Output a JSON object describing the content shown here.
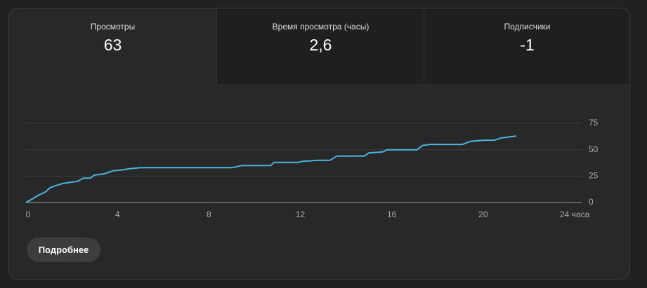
{
  "tabs": [
    {
      "label": "Просмотры",
      "value": "63"
    },
    {
      "label": "Время просмотра (часы)",
      "value": "2,6"
    },
    {
      "label": "Подписчики",
      "value": "-1"
    }
  ],
  "chart_data": {
    "type": "line",
    "x": [
      0,
      0.25,
      0.55,
      0.85,
      1.05,
      1.3,
      1.6,
      1.9,
      2.25,
      2.5,
      2.8,
      3.0,
      3.4,
      3.8,
      4.25,
      4.55,
      5.0,
      9.0,
      9.45,
      10.7,
      10.85,
      11.9,
      12.1,
      12.8,
      13.3,
      13.6,
      14.8,
      15.0,
      15.6,
      15.8,
      17.1,
      17.35,
      17.65,
      19.1,
      19.45,
      20.05,
      20.5,
      20.75,
      21.1,
      21.45
    ],
    "values": [
      0,
      3,
      7,
      10,
      14,
      16,
      18,
      19,
      20,
      23,
      23,
      26,
      27,
      30,
      31,
      32,
      33,
      33,
      35,
      35,
      38,
      38,
      39,
      40,
      40,
      44,
      44,
      47,
      48,
      50,
      50,
      54,
      55,
      55,
      58,
      59,
      59,
      61,
      62,
      63
    ],
    "color": "#4cb5de",
    "xlim": [
      0,
      24
    ],
    "xticks": [
      0,
      4,
      8,
      12,
      16,
      20,
      {
        "value": 24,
        "label": "24 часа"
      }
    ],
    "ylim": [
      0,
      75
    ],
    "yticks": [
      0,
      25,
      50,
      75
    ],
    "grid": true
  },
  "button": "Подробнее"
}
